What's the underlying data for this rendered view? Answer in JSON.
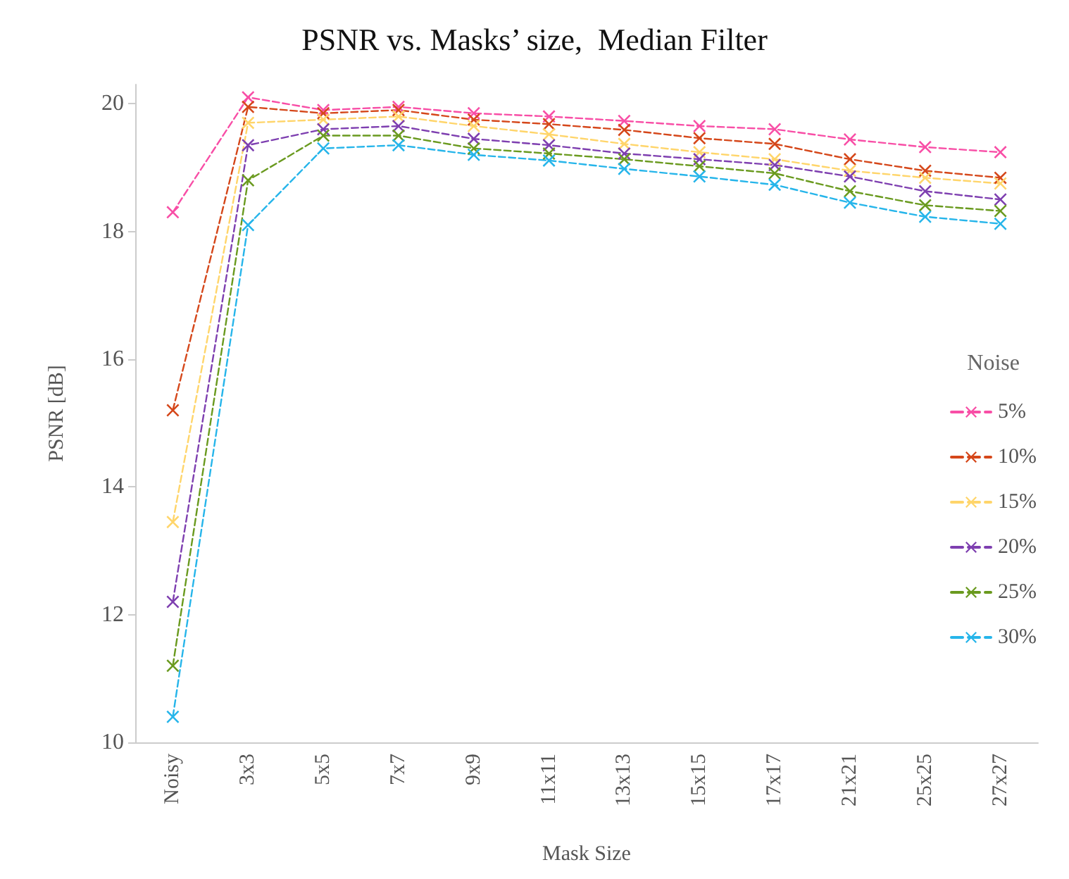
{
  "chart_data": {
    "type": "line",
    "title": "PSNR vs. Masks’ size,  Median Filter",
    "xlabel": "Mask Size",
    "ylabel": "PSNR [dB]",
    "legend_title": "Noise",
    "categories": [
      "Noisy",
      "3x3",
      "5x5",
      "7x7",
      "9x9",
      "11x11",
      "13x13",
      "15x15",
      "17x17",
      "21x21",
      "25x25",
      "27x27"
    ],
    "ylim": [
      10,
      20.3
    ],
    "yticks": [
      10,
      12,
      14,
      16,
      18,
      20
    ],
    "grid": false,
    "legend": "right",
    "marker": "cross",
    "line_style": "dashed",
    "series": [
      {
        "name": "5%",
        "color": "#f84ea6",
        "values": [
          18.3,
          20.1,
          19.9,
          19.95,
          19.85,
          19.8,
          19.73,
          19.65,
          19.6,
          19.44,
          19.32,
          19.24
        ]
      },
      {
        "name": "10%",
        "color": "#d5471a",
        "values": [
          15.2,
          19.95,
          19.85,
          19.9,
          19.75,
          19.68,
          19.59,
          19.46,
          19.37,
          19.13,
          18.95,
          18.84
        ]
      },
      {
        "name": "15%",
        "color": "#ffd56a",
        "values": [
          13.45,
          19.7,
          19.75,
          19.8,
          19.65,
          19.52,
          19.37,
          19.24,
          19.13,
          18.95,
          18.84,
          18.75
        ]
      },
      {
        "name": "20%",
        "color": "#7e3fb0",
        "values": [
          12.2,
          19.35,
          19.6,
          19.65,
          19.45,
          19.35,
          19.22,
          19.13,
          19.04,
          18.86,
          18.63,
          18.5
        ]
      },
      {
        "name": "25%",
        "color": "#6a9a1f",
        "values": [
          11.2,
          18.8,
          19.5,
          19.5,
          19.3,
          19.22,
          19.13,
          19.02,
          18.91,
          18.63,
          18.41,
          18.32
        ]
      },
      {
        "name": "30%",
        "color": "#26b5ea",
        "values": [
          10.4,
          18.1,
          19.3,
          19.35,
          19.2,
          19.11,
          18.98,
          18.86,
          18.73,
          18.45,
          18.23,
          18.12
        ]
      }
    ]
  }
}
